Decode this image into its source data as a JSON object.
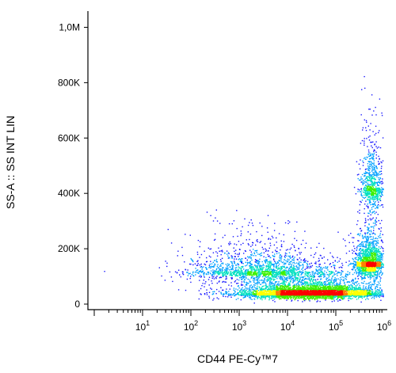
{
  "chart_data": {
    "type": "scatter",
    "subtype": "flow-cytometry density dot plot",
    "xlabel": "CD44 PE-Cy™7",
    "ylabel": "SS-A :: SS INT LIN",
    "x_scale": "log",
    "xlim": [
      1,
      1000000
    ],
    "ylim": [
      0,
      1050000
    ],
    "x_ticks": [
      {
        "base": "10",
        "exp": "1",
        "value": 10
      },
      {
        "base": "10",
        "exp": "2",
        "value": 100
      },
      {
        "base": "10",
        "exp": "3",
        "value": 1000
      },
      {
        "base": "10",
        "exp": "4",
        "value": 10000
      },
      {
        "base": "10",
        "exp": "5",
        "value": 100000
      },
      {
        "base": "10",
        "exp": "6",
        "value": 1000000
      }
    ],
    "y_ticks": [
      {
        "label": "0",
        "value": 0
      },
      {
        "label": "200K",
        "value": 200000
      },
      {
        "label": "400K",
        "value": 400000
      },
      {
        "label": "600K",
        "value": 600000
      },
      {
        "label": "800K",
        "value": 800000
      },
      {
        "label": "1,0M",
        "value": 1000000
      }
    ],
    "grid": false,
    "legend": "none",
    "colors": {
      "density_scale": [
        "#1010ff",
        "#00a0ff",
        "#00e0c0",
        "#40f000",
        "#ffff00",
        "#ff8000",
        "#ff0000"
      ],
      "sparse_dot": "#1a1aff"
    },
    "populations": [
      {
        "center_x": 30000,
        "center_y": 40000,
        "spread_log_x": 0.75,
        "spread_y": 35000,
        "weight": 0.55
      },
      {
        "center_x": 500000,
        "center_y": 150000,
        "spread_log_x": 0.15,
        "spread_y": 90000,
        "weight": 0.18
      },
      {
        "center_x": 550000,
        "center_y": 420000,
        "spread_log_x": 0.12,
        "spread_y": 150000,
        "weight": 0.08
      },
      {
        "center_x": 3000,
        "center_y": 120000,
        "spread_log_x": 0.8,
        "spread_y": 80000,
        "weight": 0.19
      }
    ]
  }
}
